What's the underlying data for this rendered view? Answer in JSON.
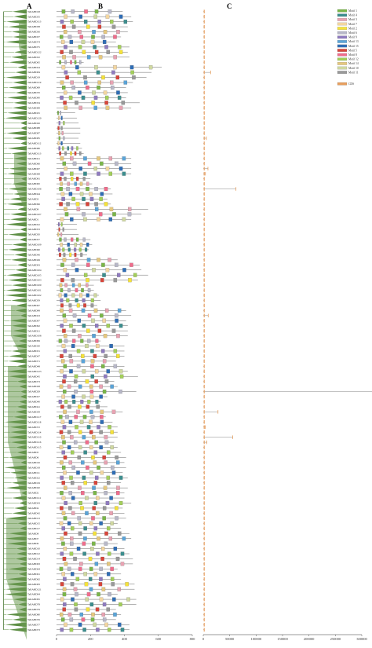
{
  "panels": {
    "a": "A",
    "b": "B",
    "c": "C"
  },
  "genes": [
    "TaRAHD18",
    "TaRAHD35",
    "TaRAHD113",
    "TaRAHD38",
    "TaRAHD36",
    "TaRAHD37",
    "TaRAHD74",
    "TaRAHD75",
    "TaRAHD122",
    "TaRAHD32",
    "TaRAHD65",
    "TaRAHD24",
    "TaRAHD84",
    "TaRAHD19",
    "TaRAHD119",
    "TaRAHD69",
    "TaRAHD70",
    "TaRAHD90",
    "TaRAHD34",
    "TaRAHD89",
    "TaRAHD25",
    "TaRAHD120",
    "TaRAHD26",
    "TaRAHD88",
    "TaRAHD87",
    "TaRAHD85",
    "TaRAHD112",
    "TaRAHD86",
    "TaRAHD113",
    "TaRAHD21",
    "TaRAHD66",
    "TaRAHD67",
    "TaRAHD68",
    "TaRAHD81",
    "TaRAHD82",
    "TaRAHD106",
    "TaRAHD44",
    "TaRAHD3",
    "TaRAHD96",
    "TaRAHD9",
    "TaRAHD107",
    "TaRAHD1",
    "TaRAHD52",
    "TaRAHD53",
    "TaRAHD50",
    "TaRAHD57",
    "TaRAHD109",
    "TaRAHD60",
    "TaRAHD46",
    "TaRAHD49",
    "TaRAHD93",
    "TaRAHD104",
    "TaRAHD105",
    "TaRAHD103",
    "TaRAHD100",
    "TaRAHD101",
    "TaRAHD102",
    "TaRAHD59",
    "TaRAHD67",
    "TaRAHD98",
    "TaRAHD23",
    "TaRAHD97",
    "TaRAHD92",
    "TaRAHD21",
    "TaRAHD108",
    "TaRAHD99",
    "TaRAHD30",
    "TaRAHD31",
    "TaRAHD47",
    "TaRAHD71",
    "TaRAHD48",
    "TaRAHD123",
    "TaRAHD45",
    "TaRAHD73",
    "TaRAHD28",
    "TaRAHD29",
    "TaRAHD27",
    "TaRAHD40",
    "TaRAHD41",
    "TaRAHD39",
    "TaRAHD117",
    "TaRAHD118",
    "TaRAHD72",
    "TaRAHD114",
    "TaRAHD110",
    "TaRAHD116",
    "TaRAHD115",
    "TaRAHD5",
    "TaRAHD6",
    "TaRAHD16",
    "TaRAHD18",
    "TaRAHD11",
    "TaRAHD22",
    "TaRAHD19",
    "TaRAHD20",
    "TaRAHD2",
    "TaRAHD111",
    "TaRAHD43",
    "TaRAHD4",
    "TaRAHD42",
    "TaRAHD13",
    "TaRAHD15",
    "TaRAHD17",
    "TaRAHD8",
    "TaRAHD7",
    "TaRAHD9",
    "TaRAHD10",
    "TaRAHD12",
    "TaRAHD14",
    "TaRAHD63",
    "TaRAHD64",
    "TaRAHD61",
    "TaRAHD62",
    "TaRAHD83",
    "TaRAHD121",
    "TaRAHD94",
    "TaRAHD95",
    "TaRAHD78",
    "TaRAHD79",
    "TaRAHD80",
    "TaRAHD76",
    "TaRAHD77",
    "TaRAHD73"
  ],
  "proteinLengths": [
    390,
    440,
    450,
    420,
    420,
    380,
    350,
    430,
    420,
    430,
    160,
    620,
    560,
    530,
    450,
    410,
    420,
    410,
    490,
    440,
    110,
    120,
    130,
    140,
    140,
    130,
    140,
    150,
    160,
    440,
    440,
    440,
    440,
    200,
    210,
    320,
    330,
    300,
    320,
    540,
    500,
    440,
    120,
    120,
    130,
    200,
    210,
    190,
    180,
    360,
    490,
    500,
    540,
    480,
    220,
    220,
    250,
    260,
    240,
    410,
    440,
    410,
    420,
    420,
    420,
    260,
    400,
    400,
    400,
    350,
    400,
    420,
    480,
    340,
    360,
    470,
    300,
    260,
    300,
    390,
    290,
    330,
    360,
    360,
    360,
    340,
    360,
    380,
    410,
    400,
    410,
    390,
    420,
    380,
    420,
    400,
    400,
    440,
    390,
    400,
    410,
    360,
    380,
    430,
    440,
    360,
    400,
    430,
    450,
    450,
    360,
    380,
    380,
    460,
    460,
    360,
    470,
    470,
    350,
    380,
    350,
    430,
    430,
    430
  ],
  "cdsLengths": [
    800,
    900,
    1100,
    1000,
    1000,
    900,
    800,
    1100,
    1200,
    1100,
    500,
    1500,
    14000,
    1800,
    1600,
    1200,
    1100,
    1000,
    1100,
    1200,
    400,
    400,
    400,
    500,
    700,
    6000,
    900,
    700,
    500,
    1200,
    1200,
    9000,
    4200,
    1000,
    1100,
    62000,
    1000,
    1000,
    1000,
    1200,
    1200,
    1100,
    400,
    400,
    400,
    600,
    700,
    600,
    600,
    900,
    1000,
    1300,
    1400,
    1200,
    600,
    600,
    700,
    700,
    700,
    1800,
    9500,
    1000,
    1200,
    1000,
    1000,
    700,
    800,
    900,
    900,
    900,
    1000,
    1100,
    1000,
    800,
    800,
    330000,
    1000,
    600,
    700,
    28000,
    1000,
    800,
    4000,
    1000,
    56000,
    7000,
    1200,
    1200,
    1100,
    1300,
    1200,
    1000,
    1100,
    1200,
    1100,
    1100,
    1100,
    1300,
    1100,
    1100,
    1100,
    1000,
    1000,
    1100,
    1100,
    1000,
    1000,
    1100,
    1200,
    1200,
    1000,
    1100,
    1000,
    1200,
    1200,
    1000,
    1200,
    1200,
    1000,
    1100,
    1000,
    1200,
    1200,
    1200
  ],
  "legend": [
    {
      "label": "Motif 1",
      "color": "#7ab648"
    },
    {
      "label": "Motif 4",
      "color": "#3c8e8e"
    },
    {
      "label": "Motif 3",
      "color": "#e8a3b2"
    },
    {
      "label": "Motif 7",
      "color": "#f3d6a0"
    },
    {
      "label": "Motif 2",
      "color": "#f5e23a"
    },
    {
      "label": "Motif 6",
      "color": "#b8b8c8"
    },
    {
      "label": "Motif 9",
      "color": "#8f7bbf"
    },
    {
      "label": "Motif 13",
      "color": "#5aa4d8"
    },
    {
      "label": "Motif 15",
      "color": "#2f6db5"
    },
    {
      "label": "Motif 5",
      "color": "#d8453a"
    },
    {
      "label": "Motif 8",
      "color": "#f06d8c"
    },
    {
      "label": "Motif 12",
      "color": "#a3cf5a"
    },
    {
      "label": "Motif 14",
      "color": "#e6c87e"
    },
    {
      "label": "Motif 10",
      "color": "#cfd8a0"
    },
    {
      "label": "Motif 11",
      "color": "#999999"
    },
    {
      "label": "CDS",
      "color": "#e8a060"
    }
  ],
  "axisB": {
    "ticks": [
      "0",
      "200",
      "400",
      "600",
      "800"
    ],
    "values": [
      0,
      200,
      400,
      600,
      800
    ]
  },
  "axisC": {
    "ticks": [
      "0",
      "50000",
      "100000",
      "150000",
      "200000",
      "250000",
      "300000"
    ],
    "values": [
      0,
      50000,
      100000,
      150000,
      200000,
      250000,
      300000
    ]
  }
}
